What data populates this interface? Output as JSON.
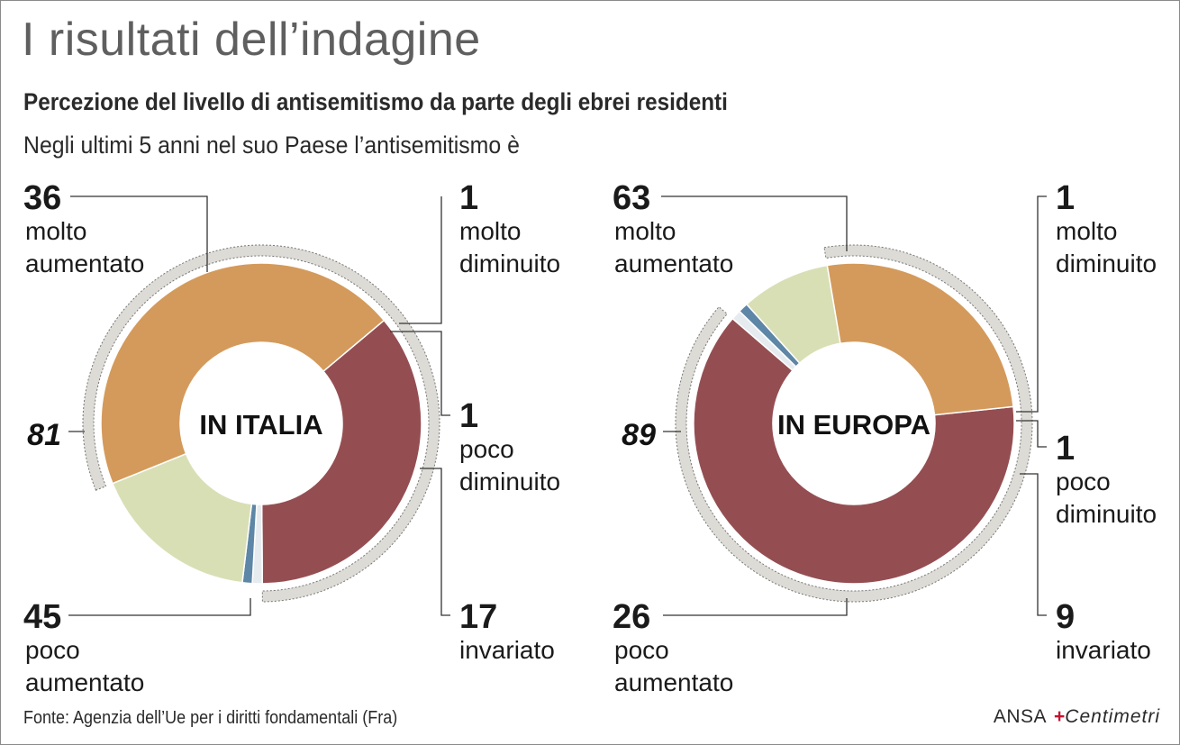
{
  "title": "I risultati dell’indagine",
  "subtitle": "Percezione del livello di antisemitismo da parte degli ebrei residenti",
  "question": "Negli ultimi 5 anni nel suo Paese l’antisemitismo è",
  "source": "Fonte: Agenzia dell’Ue per i diritti fondamentali (Fra)",
  "logo": {
    "ansa": "ANSA",
    "plus": "+",
    "brand": "Centimetri"
  },
  "colors": {
    "molto_aumentato": "#944e52",
    "poco_aumentato": "#d49a5b",
    "invariato": "#d9dfb5",
    "poco_diminuito": "#5e86a6",
    "molto_diminuito": "#e6ebef",
    "outer_arc": "#dddbd5"
  },
  "chart_data": [
    {
      "type": "pie",
      "variant": "donut",
      "center_label": "IN ITALIA",
      "categories": [
        "molto aumentato",
        "molto diminuito",
        "poco diminuito",
        "invariato",
        "poco aumentato"
      ],
      "values": [
        36,
        1,
        1,
        17,
        45
      ],
      "unit": "%",
      "aggregate": {
        "label": "81",
        "covers": [
          "molto aumentato",
          "poco aumentato"
        ]
      },
      "labels": {
        "molto_aumentato": {
          "value": "36",
          "lines": [
            "molto",
            "aumentato"
          ]
        },
        "molto_diminuito": {
          "value": "1",
          "lines": [
            "molto",
            "diminuito"
          ]
        },
        "poco_diminuito": {
          "value": "1",
          "lines": [
            "poco",
            "diminuito"
          ]
        },
        "invariato": {
          "value": "17",
          "lines": [
            "invariato"
          ]
        },
        "poco_aumentato": {
          "value": "45",
          "lines": [
            "poco",
            "aumentato"
          ]
        }
      }
    },
    {
      "type": "pie",
      "variant": "donut",
      "center_label": "IN EUROPA",
      "categories": [
        "molto aumentato",
        "molto diminuito",
        "poco diminuito",
        "invariato",
        "poco aumentato"
      ],
      "values": [
        63,
        1,
        1,
        9,
        26
      ],
      "unit": "%",
      "aggregate": {
        "label": "89",
        "covers": [
          "molto aumentato",
          "poco aumentato"
        ]
      },
      "labels": {
        "molto_aumentato": {
          "value": "63",
          "lines": [
            "molto",
            "aumentato"
          ]
        },
        "molto_diminuito": {
          "value": "1",
          "lines": [
            "molto",
            "diminuito"
          ]
        },
        "poco_diminuito": {
          "value": "1",
          "lines": [
            "poco",
            "diminuito"
          ]
        },
        "invariato": {
          "value": "9",
          "lines": [
            "invariato"
          ]
        },
        "poco_aumentato": {
          "value": "26",
          "lines": [
            "poco",
            "aumentato"
          ]
        }
      }
    }
  ]
}
